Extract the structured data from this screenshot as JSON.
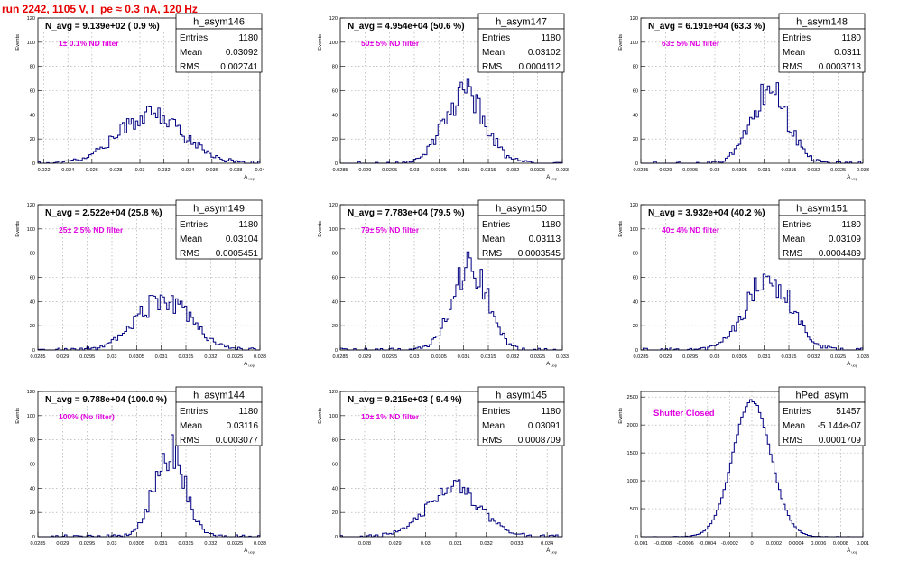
{
  "page": {
    "title": "run 2242,  1105 V, I_pe ≈ 0.3 nA, 120 Hz"
  },
  "colors": {
    "title": "#e60000",
    "annotation": "#e000e0",
    "histogram": "#000080",
    "grid": "#a0a0a0",
    "axis": "#000000"
  },
  "chart_data": [
    {
      "type": "bar",
      "hist_name": "h_asym146",
      "navg": "N_avg = 9.139e+02 ( 0.9 %)",
      "filter": "1± 0.1% ND filter",
      "stats": [
        {
          "label": "Entries",
          "value": "1180"
        },
        {
          "label": "Mean",
          "value": "0.03092"
        },
        {
          "label": "RMS",
          "value": "0.002741"
        }
      ],
      "ylabel": "Events",
      "xlabel": "A",
      "xlabel_sub": "uop",
      "xlim": [
        0.0215,
        0.04
      ],
      "ylim": [
        0,
        120
      ],
      "xticks": [
        0.022,
        0.024,
        0.026,
        0.028,
        0.03,
        0.032,
        0.034,
        0.036,
        0.038,
        0.04
      ],
      "xtick_labels": [
        "0.022",
        "0.024",
        "0.026",
        "0.028",
        "0.03",
        "0.032",
        "0.034",
        "0.036",
        "0.038",
        "0.04"
      ],
      "yticks": [
        0,
        20,
        40,
        60,
        80,
        100,
        120
      ],
      "ytick_labels": [
        "0",
        "20",
        "40",
        "60",
        "80",
        "100",
        "120"
      ],
      "shape": {
        "mean": 0.03092,
        "sigma": 0.002741,
        "peak": 40
      }
    },
    {
      "type": "bar",
      "hist_name": "h_asym147",
      "navg": "N_avg = 4.954e+04 (50.6 %)",
      "filter": "50± 5% ND filter",
      "stats": [
        {
          "label": "Entries",
          "value": "1180"
        },
        {
          "label": "Mean",
          "value": "0.03102"
        },
        {
          "label": "RMS",
          "value": "0.0004112"
        }
      ],
      "ylabel": "Events",
      "xlabel": "A",
      "xlabel_sub": "uop",
      "xlim": [
        0.0285,
        0.033
      ],
      "ylim": [
        0,
        120
      ],
      "xticks": [
        0.0285,
        0.029,
        0.0295,
        0.03,
        0.0305,
        0.031,
        0.0315,
        0.032,
        0.0325,
        0.033
      ],
      "xtick_labels": [
        "0.0285",
        "0.029",
        "0.0295",
        "0.03",
        "0.0305",
        "0.031",
        "0.0315",
        "0.032",
        "0.0325",
        "0.033"
      ],
      "yticks": [
        0,
        20,
        40,
        60,
        80,
        100,
        120
      ],
      "ytick_labels": [
        "0",
        "20",
        "40",
        "60",
        "80",
        "100",
        "120"
      ],
      "shape": {
        "mean": 0.03102,
        "sigma": 0.0004112,
        "peak": 58
      }
    },
    {
      "type": "bar",
      "hist_name": "h_asym148",
      "navg": "N_avg = 6.191e+04 (63.3 %)",
      "filter": "63± 5% ND filter",
      "stats": [
        {
          "label": "Entries",
          "value": "1180"
        },
        {
          "label": "Mean",
          "value": "0.0311"
        },
        {
          "label": "RMS",
          "value": "0.0003713"
        }
      ],
      "ylabel": "Events",
      "xlabel": "A",
      "xlabel_sub": "uop",
      "xlim": [
        0.0285,
        0.033
      ],
      "ylim": [
        0,
        120
      ],
      "xticks": [
        0.0285,
        0.029,
        0.0295,
        0.03,
        0.0305,
        0.031,
        0.0315,
        0.032,
        0.0325,
        0.033
      ],
      "xtick_labels": [
        "0.0285",
        "0.029",
        "0.0295",
        "0.03",
        "0.0305",
        "0.031",
        "0.0315",
        "0.032",
        "0.0325",
        "0.033"
      ],
      "yticks": [
        0,
        20,
        40,
        60,
        80,
        100,
        120
      ],
      "ytick_labels": [
        "0",
        "20",
        "40",
        "60",
        "80",
        "100",
        "120"
      ],
      "shape": {
        "mean": 0.0311,
        "sigma": 0.0003713,
        "peak": 60
      }
    },
    {
      "type": "bar",
      "hist_name": "h_asym149",
      "navg": "N_avg = 2.522e+04 (25.8 %)",
      "filter": "25± 2.5% ND filter",
      "stats": [
        {
          "label": "Entries",
          "value": "1180"
        },
        {
          "label": "Mean",
          "value": "0.03104"
        },
        {
          "label": "RMS",
          "value": "0.0005451"
        }
      ],
      "ylabel": "Events",
      "xlabel": "A",
      "xlabel_sub": "uop",
      "xlim": [
        0.0285,
        0.033
      ],
      "ylim": [
        0,
        120
      ],
      "xticks": [
        0.0285,
        0.029,
        0.0295,
        0.03,
        0.0305,
        0.031,
        0.0315,
        0.032,
        0.0325,
        0.033
      ],
      "xtick_labels": [
        "0.0285",
        "0.029",
        "0.0295",
        "0.03",
        "0.0305",
        "0.031",
        "0.0315",
        "0.032",
        "0.0325",
        "0.033"
      ],
      "yticks": [
        0,
        20,
        40,
        60,
        80,
        100,
        120
      ],
      "ytick_labels": [
        "0",
        "20",
        "40",
        "60",
        "80",
        "100",
        "120"
      ],
      "shape": {
        "mean": 0.03104,
        "sigma": 0.0005451,
        "peak": 42
      }
    },
    {
      "type": "bar",
      "hist_name": "h_asym150",
      "navg": "N_avg = 7.783e+04 (79.5 %)",
      "filter": "79± 5% ND filter",
      "stats": [
        {
          "label": "Entries",
          "value": "1180"
        },
        {
          "label": "Mean",
          "value": "0.03113"
        },
        {
          "label": "RMS",
          "value": "0.0003545"
        }
      ],
      "ylabel": "Events",
      "xlabel": "A",
      "xlabel_sub": "uop",
      "xlim": [
        0.0285,
        0.033
      ],
      "ylim": [
        0,
        120
      ],
      "xticks": [
        0.0285,
        0.029,
        0.0295,
        0.03,
        0.0305,
        0.031,
        0.0315,
        0.032,
        0.0325,
        0.033
      ],
      "xtick_labels": [
        "0.0285",
        "0.029",
        "0.0295",
        "0.03",
        "0.0305",
        "0.031",
        "0.0315",
        "0.032",
        "0.0325",
        "0.033"
      ],
      "yticks": [
        0,
        20,
        40,
        60,
        80,
        100,
        120
      ],
      "ytick_labels": [
        "0",
        "20",
        "40",
        "60",
        "80",
        "100",
        "120"
      ],
      "shape": {
        "mean": 0.03113,
        "sigma": 0.0003545,
        "peak": 70
      }
    },
    {
      "type": "bar",
      "hist_name": "h_asym151",
      "navg": "N_avg = 3.932e+04 (40.2 %)",
      "filter": "40± 4% ND filter",
      "stats": [
        {
          "label": "Entries",
          "value": "1180"
        },
        {
          "label": "Mean",
          "value": "0.03109"
        },
        {
          "label": "RMS",
          "value": "0.0004489"
        }
      ],
      "ylabel": "Events",
      "xlabel": "A",
      "xlabel_sub": "uop",
      "xlim": [
        0.0285,
        0.033
      ],
      "ylim": [
        0,
        120
      ],
      "xticks": [
        0.0285,
        0.029,
        0.0295,
        0.03,
        0.0305,
        0.031,
        0.0315,
        0.032,
        0.0325,
        0.033
      ],
      "xtick_labels": [
        "0.0285",
        "0.029",
        "0.0295",
        "0.03",
        "0.0305",
        "0.031",
        "0.0315",
        "0.032",
        "0.0325",
        "0.033"
      ],
      "yticks": [
        0,
        20,
        40,
        60,
        80,
        100,
        120
      ],
      "ytick_labels": [
        "0",
        "20",
        "40",
        "60",
        "80",
        "100",
        "120"
      ],
      "shape": {
        "mean": 0.03109,
        "sigma": 0.0004489,
        "peak": 60
      }
    },
    {
      "type": "bar",
      "hist_name": "h_asym144",
      "navg": "N_avg = 9.788e+04 (100.0 %)",
      "filter": "100% (No filter)",
      "stats": [
        {
          "label": "Entries",
          "value": "1180"
        },
        {
          "label": "Mean",
          "value": "0.03116"
        },
        {
          "label": "RMS",
          "value": "0.0003077"
        }
      ],
      "ylabel": "Events",
      "xlabel": "A",
      "xlabel_sub": "uop",
      "xlim": [
        0.0285,
        0.033
      ],
      "ylim": [
        0,
        120
      ],
      "xticks": [
        0.0285,
        0.029,
        0.0295,
        0.03,
        0.0305,
        0.031,
        0.0315,
        0.032,
        0.0325,
        0.033
      ],
      "xtick_labels": [
        "0.0285",
        "0.029",
        "0.0295",
        "0.03",
        "0.0305",
        "0.031",
        "0.0315",
        "0.032",
        "0.0325",
        "0.033"
      ],
      "yticks": [
        0,
        20,
        40,
        60,
        80,
        100,
        120
      ],
      "ytick_labels": [
        "0",
        "20",
        "40",
        "60",
        "80",
        "100",
        "120"
      ],
      "shape": {
        "mean": 0.03116,
        "sigma": 0.0003077,
        "peak": 72
      }
    },
    {
      "type": "bar",
      "hist_name": "h_asym145",
      "navg": "N_avg = 9.215e+03 ( 9.4 %)",
      "filter": "10± 1% ND filter",
      "stats": [
        {
          "label": "Entries",
          "value": "1180"
        },
        {
          "label": "Mean",
          "value": "0.03091"
        },
        {
          "label": "RMS",
          "value": "0.0008709"
        }
      ],
      "ylabel": "Events",
      "xlabel": "A",
      "xlabel_sub": "uop",
      "xlim": [
        0.0272,
        0.0345
      ],
      "ylim": [
        0,
        120
      ],
      "xticks": [
        0.028,
        0.029,
        0.03,
        0.031,
        0.032,
        0.033,
        0.034
      ],
      "xtick_labels": [
        "0.028",
        "0.029",
        "0.03",
        "0.031",
        "0.032",
        "0.033",
        "0.034"
      ],
      "yticks": [
        0,
        20,
        40,
        60,
        80,
        100,
        120
      ],
      "ytick_labels": [
        "0",
        "20",
        "40",
        "60",
        "80",
        "100",
        "120"
      ],
      "shape": {
        "mean": 0.03091,
        "sigma": 0.0008709,
        "peak": 40
      }
    },
    {
      "type": "bar",
      "hist_name": "hPed_asym",
      "navg": "",
      "filter": "Shutter Closed",
      "stats": [
        {
          "label": "Entries",
          "value": "51457"
        },
        {
          "label": "Mean",
          "value": "-5.144e-07"
        },
        {
          "label": "RMS",
          "value": "0.0001709"
        }
      ],
      "ylabel": "Events",
      "xlabel": "A",
      "xlabel_sub": "uop",
      "xlim": [
        -0.001,
        0.001
      ],
      "ylim": [
        0,
        2600
      ],
      "xticks": [
        -0.001,
        -0.0008,
        -0.0006,
        -0.0004,
        -0.0002,
        0,
        0.0002,
        0.0004,
        0.0006,
        0.0008,
        0.001
      ],
      "xtick_labels": [
        "-0.001",
        "-0.0008",
        "-0.0006",
        "-0.0004",
        "-0.0002",
        "0",
        "0.0002",
        "0.0004",
        "0.0006",
        "0.0008",
        "0.001"
      ],
      "yticks": [
        0,
        500,
        1000,
        1500,
        2000,
        2500
      ],
      "ytick_labels": [
        "0",
        "500",
        "1000",
        "1500",
        "2000",
        "2500"
      ],
      "shape": {
        "mean": -5.144e-07,
        "sigma": 0.0001709,
        "peak": 2440
      }
    }
  ]
}
